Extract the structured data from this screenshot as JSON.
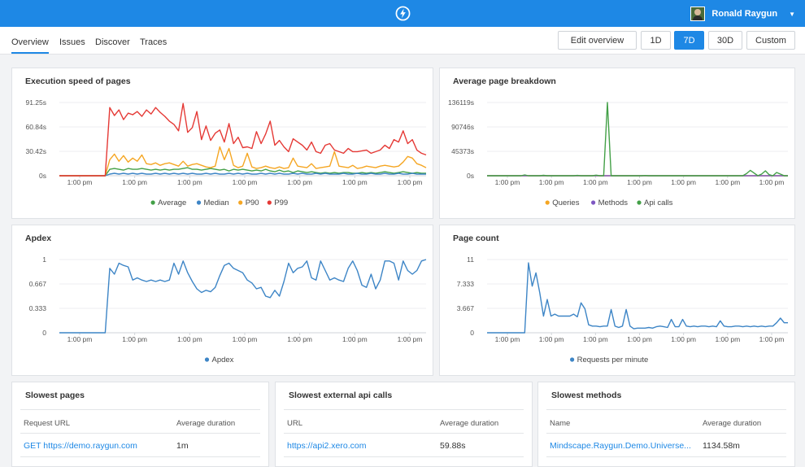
{
  "header": {
    "user_name": "Ronald Raygun",
    "logo_icon": "lightning-bolt-icon"
  },
  "nav": {
    "tabs": [
      {
        "label": "Overview",
        "active": true
      },
      {
        "label": "Issues",
        "active": false
      },
      {
        "label": "Discover",
        "active": false
      },
      {
        "label": "Traces",
        "active": false
      }
    ],
    "edit_overview_label": "Edit overview",
    "ranges": [
      {
        "label": "1D",
        "selected": false
      },
      {
        "label": "7D",
        "selected": true
      },
      {
        "label": "30D",
        "selected": false
      },
      {
        "label": "Custom",
        "selected": false
      }
    ]
  },
  "colors": {
    "accent": "#1e88e5",
    "green": "#43a047",
    "blue": "#3d85c6",
    "orange": "#f5a623",
    "red": "#e53935",
    "purple": "#7e57c2"
  },
  "chart_data": [
    {
      "id": "execution-speed",
      "type": "line",
      "title": "Execution speed of pages",
      "y_ticks": [
        "91.25s",
        "60.84s",
        "30.42s",
        "0s"
      ],
      "ylim": [
        0,
        91.25
      ],
      "x_ticks": [
        "1:00 pm",
        "1:00 pm",
        "1:00 pm",
        "1:00 pm",
        "1:00 pm",
        "1:00 pm",
        "1:00 pm"
      ],
      "legend": [
        "Average",
        "Median",
        "P90",
        "P99"
      ],
      "series": [
        {
          "name": "Average",
          "color": "#43a047",
          "values": [
            0,
            0,
            0,
            0,
            0,
            0,
            0,
            0,
            0,
            0,
            0,
            8,
            9,
            8,
            7,
            9,
            8,
            8,
            9,
            8,
            7,
            8,
            7,
            8,
            7,
            8,
            8,
            9,
            10,
            8,
            8,
            7,
            8,
            9,
            8,
            7,
            8,
            6,
            8,
            7,
            8,
            7,
            6,
            7,
            6,
            8,
            6,
            5,
            7,
            5,
            6,
            4,
            6,
            5,
            4,
            5,
            4,
            3,
            4,
            3,
            4,
            3,
            4,
            4,
            3,
            3,
            4,
            3,
            4,
            3,
            4,
            5,
            4,
            3,
            4,
            5,
            4,
            3,
            4,
            3,
            3
          ]
        },
        {
          "name": "Median",
          "color": "#3d85c6",
          "values": [
            0,
            0,
            0,
            0,
            0,
            0,
            0,
            0,
            0,
            0,
            0,
            2,
            3,
            2,
            3,
            2,
            3,
            2,
            3,
            2,
            2,
            3,
            2,
            3,
            2,
            3,
            2,
            3,
            2,
            3,
            2,
            2,
            3,
            2,
            3,
            2,
            2,
            3,
            2,
            3,
            2,
            3,
            2,
            2,
            3,
            2,
            3,
            2,
            3,
            2,
            2,
            3,
            2,
            3,
            2,
            2,
            3,
            2,
            3,
            2,
            2,
            2,
            3,
            2,
            2,
            3,
            2,
            2,
            3,
            2,
            2,
            3,
            2,
            2,
            3,
            2,
            2,
            3,
            2,
            2,
            2
          ]
        },
        {
          "name": "P90",
          "color": "#f5a623",
          "values": [
            0,
            0,
            0,
            0,
            0,
            0,
            0,
            0,
            0,
            0,
            0,
            20,
            27,
            18,
            25,
            17,
            22,
            18,
            26,
            15,
            14,
            16,
            13,
            15,
            16,
            14,
            12,
            18,
            12,
            14,
            15,
            13,
            11,
            10,
            12,
            36,
            20,
            34,
            13,
            10,
            12,
            28,
            11,
            9,
            10,
            12,
            10,
            9,
            11,
            9,
            10,
            22,
            12,
            11,
            10,
            15,
            9,
            10,
            11,
            12,
            30,
            12,
            11,
            10,
            13,
            9,
            10,
            12,
            11,
            10,
            12,
            13,
            12,
            11,
            12,
            17,
            24,
            22,
            15,
            13,
            10
          ]
        },
        {
          "name": "P99",
          "color": "#e53935",
          "values": [
            0,
            0,
            0,
            0,
            0,
            0,
            0,
            0,
            0,
            0,
            0,
            85,
            75,
            82,
            70,
            78,
            76,
            80,
            74,
            82,
            77,
            85,
            79,
            74,
            68,
            64,
            56,
            90,
            54,
            60,
            80,
            45,
            62,
            44,
            53,
            57,
            42,
            65,
            40,
            48,
            35,
            36,
            34,
            55,
            40,
            52,
            68,
            38,
            44,
            36,
            30,
            46,
            42,
            38,
            32,
            42,
            30,
            28,
            38,
            40,
            32,
            30,
            28,
            34,
            30,
            30,
            31,
            32,
            28,
            30,
            32,
            38,
            34,
            45,
            42,
            56,
            40,
            45,
            32,
            28,
            26
          ]
        }
      ]
    },
    {
      "id": "average-page-breakdown",
      "type": "line",
      "title": "Average page breakdown",
      "y_ticks": [
        "136119s",
        "90746s",
        "45373s",
        "0s"
      ],
      "ylim": [
        0,
        136119
      ],
      "x_ticks": [
        "1:00 pm",
        "1:00 pm",
        "1:00 pm",
        "1:00 pm",
        "1:00 pm",
        "1:00 pm",
        "1:00 pm"
      ],
      "legend": [
        "Queries",
        "Methods",
        "Api calls"
      ],
      "series": [
        {
          "name": "Queries",
          "color": "#f5a623",
          "values": [
            0,
            0,
            0,
            0,
            0,
            0,
            0,
            0,
            0,
            0,
            0,
            0,
            0,
            0,
            0,
            0,
            0,
            0,
            0,
            0,
            0,
            0,
            0,
            0,
            0,
            0,
            0,
            0,
            0,
            0,
            0,
            0,
            0,
            0,
            0,
            0,
            0,
            0,
            0,
            0,
            0,
            0,
            0,
            0,
            0,
            0,
            0,
            0,
            0,
            0,
            0,
            0,
            0,
            0,
            0,
            0,
            0,
            0,
            0,
            0,
            0,
            0,
            0,
            0,
            0,
            0,
            0,
            0,
            0,
            0,
            0,
            0,
            0,
            0,
            0,
            0,
            0,
            0,
            0,
            0,
            0
          ]
        },
        {
          "name": "Methods",
          "color": "#7e57c2",
          "values": [
            0,
            0,
            0,
            0,
            0,
            0,
            0,
            0,
            0,
            0,
            0,
            0,
            0,
            0,
            0,
            0,
            0,
            0,
            0,
            0,
            0,
            0,
            0,
            0,
            0,
            0,
            0,
            0,
            0,
            0,
            0,
            0,
            0,
            0,
            0,
            0,
            0,
            0,
            0,
            0,
            0,
            0,
            0,
            0,
            0,
            0,
            0,
            0,
            0,
            0,
            0,
            0,
            0,
            0,
            0,
            0,
            0,
            0,
            0,
            0,
            0,
            0,
            0,
            0,
            0,
            0,
            0,
            0,
            0,
            0,
            0,
            0,
            0,
            0,
            0,
            0,
            0,
            0,
            0,
            0,
            0
          ]
        },
        {
          "name": "Api calls",
          "color": "#43a047",
          "values": [
            0,
            0,
            0,
            0,
            0,
            0,
            0,
            0,
            0,
            0,
            1500,
            0,
            0,
            0,
            0,
            800,
            0,
            0,
            0,
            0,
            0,
            0,
            0,
            0,
            600,
            0,
            0,
            0,
            0,
            1000,
            0,
            0,
            136119,
            0,
            0,
            0,
            0,
            0,
            0,
            0,
            0,
            0,
            500,
            0,
            0,
            0,
            0,
            0,
            0,
            0,
            0,
            0,
            0,
            0,
            0,
            0,
            0,
            0,
            0,
            0,
            0,
            0,
            0,
            0,
            0,
            0,
            0,
            0,
            0,
            4000,
            10000,
            5000,
            0,
            3000,
            9000,
            2000,
            0,
            6000,
            3000,
            0,
            0
          ]
        }
      ]
    },
    {
      "id": "apdex",
      "type": "line",
      "title": "Apdex",
      "y_ticks": [
        "1",
        "0.667",
        "0.333",
        "0"
      ],
      "ylim": [
        0,
        1
      ],
      "x_ticks": [
        "1:00 pm",
        "1:00 pm",
        "1:00 pm",
        "1:00 pm",
        "1:00 pm",
        "1:00 pm",
        "1:00 pm"
      ],
      "legend": [
        "Apdex"
      ],
      "series": [
        {
          "name": "Apdex",
          "color": "#3d85c6",
          "values": [
            0,
            0,
            0,
            0,
            0,
            0,
            0,
            0,
            0,
            0,
            0,
            0.88,
            0.8,
            0.95,
            0.92,
            0.9,
            0.72,
            0.75,
            0.72,
            0.7,
            0.72,
            0.7,
            0.72,
            0.7,
            0.72,
            0.95,
            0.8,
            0.98,
            0.82,
            0.7,
            0.6,
            0.55,
            0.58,
            0.56,
            0.62,
            0.78,
            0.92,
            0.95,
            0.88,
            0.85,
            0.82,
            0.72,
            0.68,
            0.6,
            0.62,
            0.5,
            0.48,
            0.58,
            0.5,
            0.7,
            0.95,
            0.82,
            0.88,
            0.9,
            0.98,
            0.75,
            0.72,
            0.98,
            0.85,
            0.72,
            0.75,
            0.72,
            0.7,
            0.88,
            0.98,
            0.85,
            0.65,
            0.62,
            0.8,
            0.6,
            0.72,
            0.98,
            0.98,
            0.95,
            0.72,
            0.98,
            0.85,
            0.8,
            0.85,
            0.98,
            1
          ]
        }
      ]
    },
    {
      "id": "page-count",
      "type": "line",
      "title": "Page count",
      "y_ticks": [
        "11",
        "7.333",
        "3.667",
        "0"
      ],
      "ylim": [
        0,
        11
      ],
      "x_ticks": [
        "1:00 pm",
        "1:00 pm",
        "1:00 pm",
        "1:00 pm",
        "1:00 pm",
        "1:00 pm",
        "1:00 pm"
      ],
      "legend": [
        "Requests per minute"
      ],
      "series": [
        {
          "name": "Requests per minute",
          "color": "#3d85c6",
          "values": [
            0,
            0,
            0,
            0,
            0,
            0,
            0,
            0,
            0,
            0,
            0,
            10.5,
            7,
            9,
            6,
            2.5,
            5,
            2.5,
            2.8,
            2.5,
            2.5,
            2.5,
            2.5,
            2.8,
            2.4,
            4.5,
            3.6,
            1.2,
            1,
            1,
            0.9,
            1,
            1,
            3.5,
            1,
            0.8,
            1,
            3.5,
            1,
            0.6,
            0.7,
            0.7,
            0.7,
            0.8,
            0.7,
            0.9,
            1,
            0.9,
            0.8,
            2,
            0.9,
            0.9,
            2,
            1,
            0.9,
            1,
            0.9,
            1,
            1,
            0.9,
            1,
            0.9,
            1.8,
            1,
            0.9,
            0.9,
            1,
            1,
            0.9,
            1,
            0.9,
            1,
            0.9,
            1,
            0.9,
            1,
            1,
            1.5,
            2.2,
            1.5,
            1.5
          ]
        }
      ]
    }
  ],
  "tables": [
    {
      "title": "Slowest pages",
      "col1": "Request URL",
      "col2": "Average duration",
      "rows": [
        {
          "name": "GET https://demo.raygun.com",
          "value": "1m"
        }
      ]
    },
    {
      "title": "Slowest external api calls",
      "col1": "URL",
      "col2": "Average duration",
      "rows": [
        {
          "name": "https://api2.xero.com",
          "value": "59.88s"
        }
      ]
    },
    {
      "title": "Slowest methods",
      "col1": "Name",
      "col2": "Average duration",
      "rows": [
        {
          "name": "Mindscape.Raygun.Demo.Universe...",
          "value": "1134.58m"
        }
      ]
    }
  ]
}
